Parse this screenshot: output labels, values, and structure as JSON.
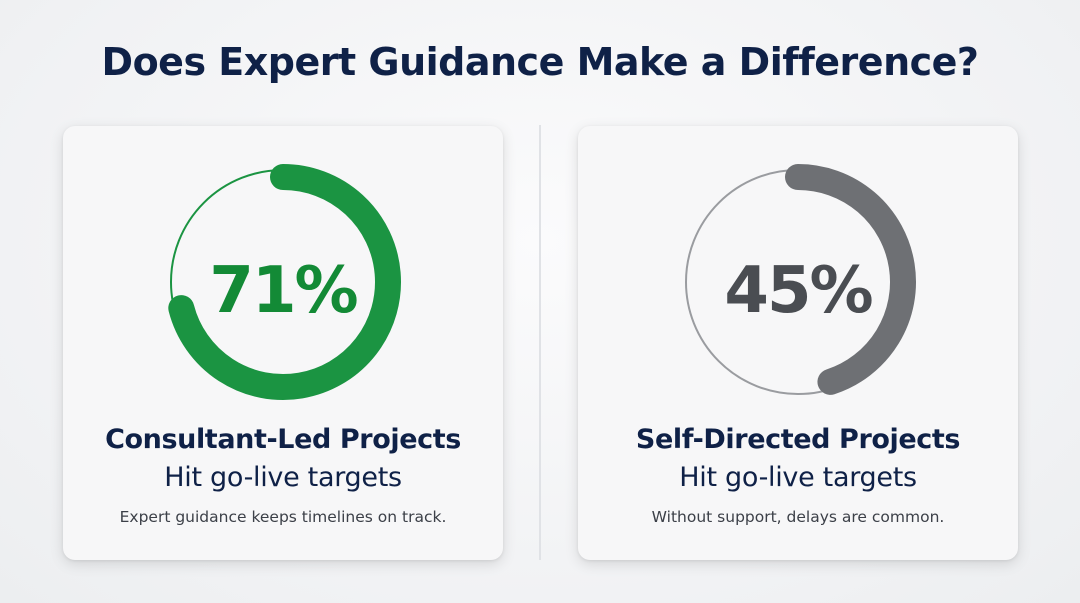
{
  "title": "Does Expert Guidance Make a Difference?",
  "colors": {
    "title": "#0f2147",
    "consultant_arc": "#1b9442",
    "self_directed_arc": "#6e7074",
    "track": "#9a9ca0"
  },
  "chart_data": [
    {
      "type": "pie",
      "title": "Consultant-Led Projects",
      "subtitle": "Hit go-live targets",
      "value": 71,
      "value_label": "71%",
      "max": 100,
      "note": "Expert guidance keeps timelines on track."
    },
    {
      "type": "pie",
      "title": "Self-Directed Projects",
      "subtitle": "Hit go-live targets",
      "value": 45,
      "value_label": "45%",
      "max": 100,
      "note": "Without support, delays are common."
    }
  ]
}
